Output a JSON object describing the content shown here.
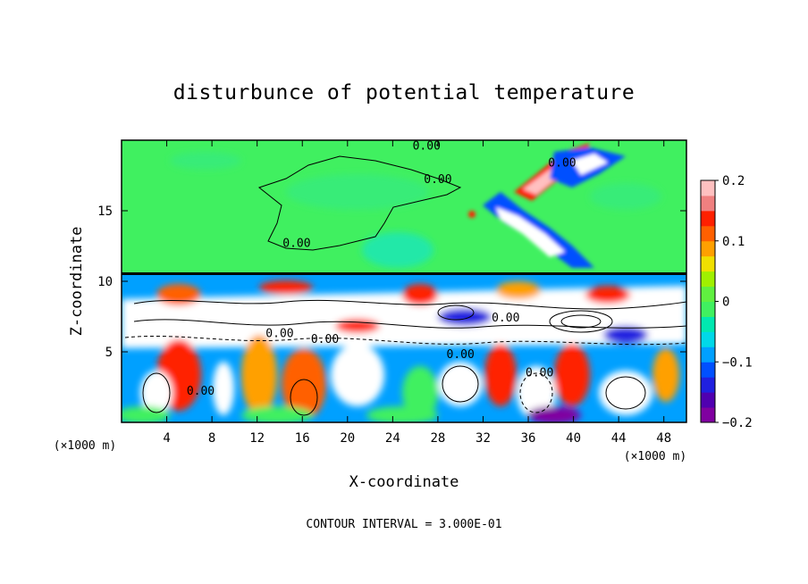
{
  "chart_data": {
    "type": "heatmap",
    "title": "disturbunce of potential temperature",
    "xlabel": "X-coordinate",
    "ylabel": "Z-coordinate",
    "x_unit_label": "(×1000 m)",
    "y_unit_label": "(×1000 m)",
    "xlim": [
      0,
      50
    ],
    "ylim": [
      0,
      20
    ],
    "x_ticks": [
      4,
      8,
      12,
      16,
      20,
      24,
      28,
      32,
      36,
      40,
      44,
      48
    ],
    "y_ticks": [
      5,
      10,
      15
    ],
    "colorbar": {
      "min": -0.2,
      "max": 0.2,
      "ticks": [
        {
          "value": 0.2,
          "label": "0.2"
        },
        {
          "value": 0.1,
          "label": "0.1"
        },
        {
          "value": 0.0,
          "label": "0"
        },
        {
          "value": -0.1,
          "label": "−0.1"
        },
        {
          "value": -0.2,
          "label": "−0.2"
        }
      ],
      "colors": [
        "#8000a0",
        "#5000b0",
        "#2020e0",
        "#0050ff",
        "#00a0ff",
        "#00d8e8",
        "#00e8b0",
        "#40f060",
        "#60f040",
        "#a0f000",
        "#f0e000",
        "#ffa000",
        "#ff6000",
        "#ff2000",
        "#f08080",
        "#ffc0c0"
      ]
    },
    "contour_interval_text": "CONTOUR INTERVAL = 3.000E-01",
    "contour_labels": [
      {
        "text": "0.00",
        "x": 27.0,
        "z": 19.6
      },
      {
        "text": "0.00",
        "x": 28.0,
        "z": 17.2
      },
      {
        "text": "0.00",
        "x": 39.0,
        "z": 18.4
      },
      {
        "text": "0.00",
        "x": 15.5,
        "z": 12.7
      },
      {
        "text": "0.00",
        "x": 14.0,
        "z": 6.3
      },
      {
        "text": "0.00",
        "x": 18.0,
        "z": 5.9
      },
      {
        "text": "0.00",
        "x": 30.0,
        "z": 4.8
      },
      {
        "text": "0.00",
        "x": 34.0,
        "z": 7.4
      },
      {
        "text": "0.00",
        "x": 7.0,
        "z": 2.2
      },
      {
        "text": "0.00",
        "x": 37.0,
        "z": 3.5
      }
    ],
    "grid": false,
    "legend": "right"
  }
}
